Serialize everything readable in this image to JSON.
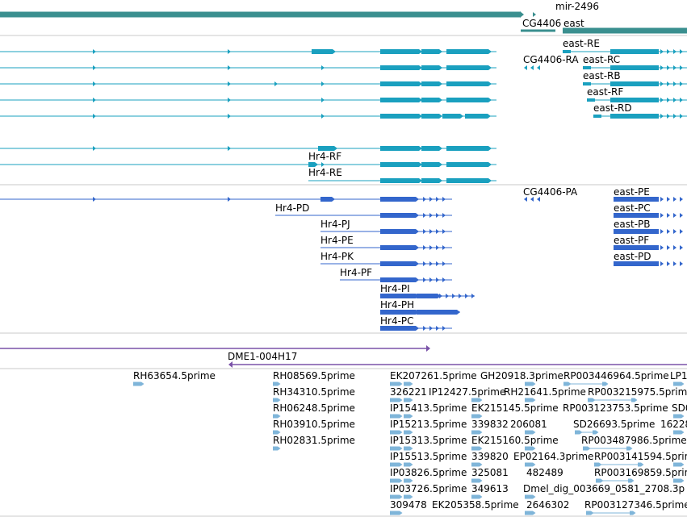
{
  "colors": {
    "gene": "#3a8f8f",
    "transcript_a": "#1aa0bf",
    "transcript_b": "#3366cc",
    "clone": "#7a52a8",
    "est": "#7fb5d9",
    "divider": "#c8c8c8"
  },
  "tracks": {
    "genes": {
      "labels": [
        "mir-2496",
        "east",
        "CG4406"
      ]
    },
    "transcripts_a": {
      "labels": [
        "east-RE",
        "CG4406-RA",
        "east-RC",
        "east-RB",
        "east-RF",
        "east-RD",
        "Hr4-RF",
        "Hr4-RE"
      ]
    },
    "transcripts_b": {
      "labels": [
        "CG4406-PA",
        "east-PE",
        "Hr4-PD",
        "east-PC",
        "Hr4-PJ",
        "east-PB",
        "Hr4-PE",
        "east-PF",
        "Hr4-PK",
        "east-PD",
        "Hr4-PF",
        "Hr4-PI",
        "Hr4-PH",
        "Hr4-PC"
      ]
    },
    "clones": {
      "labels": [
        "DME1-004H17"
      ]
    },
    "ests": {
      "labels": [
        "RH63654.5prime",
        "RH08569.5prime",
        "EK207261.5prime",
        "GH20918.3prime",
        "RP003446964.5prime",
        "LP1",
        "RH34310.5prime",
        "326221",
        "IP12427.5prime",
        "RH21641.5prime",
        "RP003215975.5prime",
        "RH06248.5prime",
        "IP15413.5prime",
        "EK215145.5prime",
        "RP003123753.5prime",
        "SD0",
        "RH03910.5prime",
        "IP15213.5prime",
        "339832",
        "206081",
        "SD26693.5prime",
        "16228",
        "RH02831.5prime",
        "IP15313.5prime",
        "EK215160.5prime",
        "RP003487986.5prime",
        "IP15513.5prime",
        "339820",
        "EP02164.3prime",
        "RP003141594.5prime",
        "IP03826.5prime",
        "325081",
        "482489",
        "RP003169859.5prime",
        "IP03726.5prime",
        "349613",
        "Dmel_dig_003669_0581_2708.3p",
        "309478",
        "EK205358.5prime",
        "2646302",
        "RP003127346.5prime"
      ]
    }
  }
}
